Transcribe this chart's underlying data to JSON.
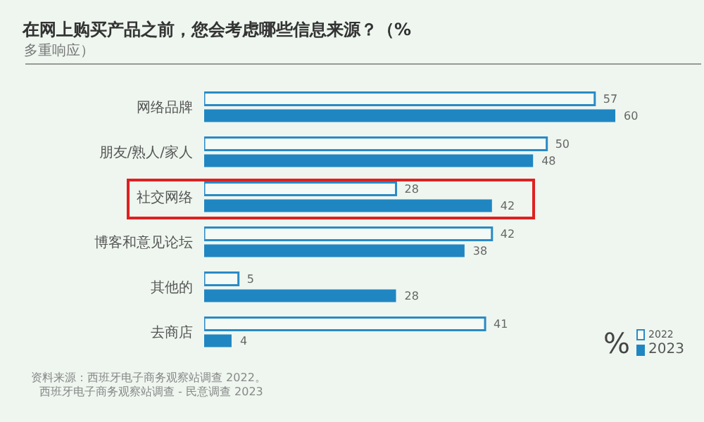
{
  "chart_data": {
    "type": "bar",
    "orientation": "horizontal",
    "title": "在网上购买产品之前，您会考虑哪些信息来源？（%",
    "subtitle": "多重响应）",
    "categories": [
      "网络品牌",
      "朋友/熟人/家人",
      "社交网络",
      "博客和意见论坛",
      "其他的",
      "去商店"
    ],
    "series": [
      {
        "name": "2022",
        "color": "#2a8ac6",
        "values": [
          57,
          50,
          28,
          42,
          5,
          41
        ]
      },
      {
        "name": "2023",
        "color": "#1f86c2",
        "values": [
          60,
          48,
          42,
          38,
          28,
          4
        ]
      }
    ],
    "data_labels": true,
    "legend": "bottom right",
    "grid": false,
    "annotations": [
      "%",
      "资料来源：西班牙电子商务观察站调查 2022。",
      "西班牙电子商务观察站调查 - 民意调查 2023"
    ]
  }
}
